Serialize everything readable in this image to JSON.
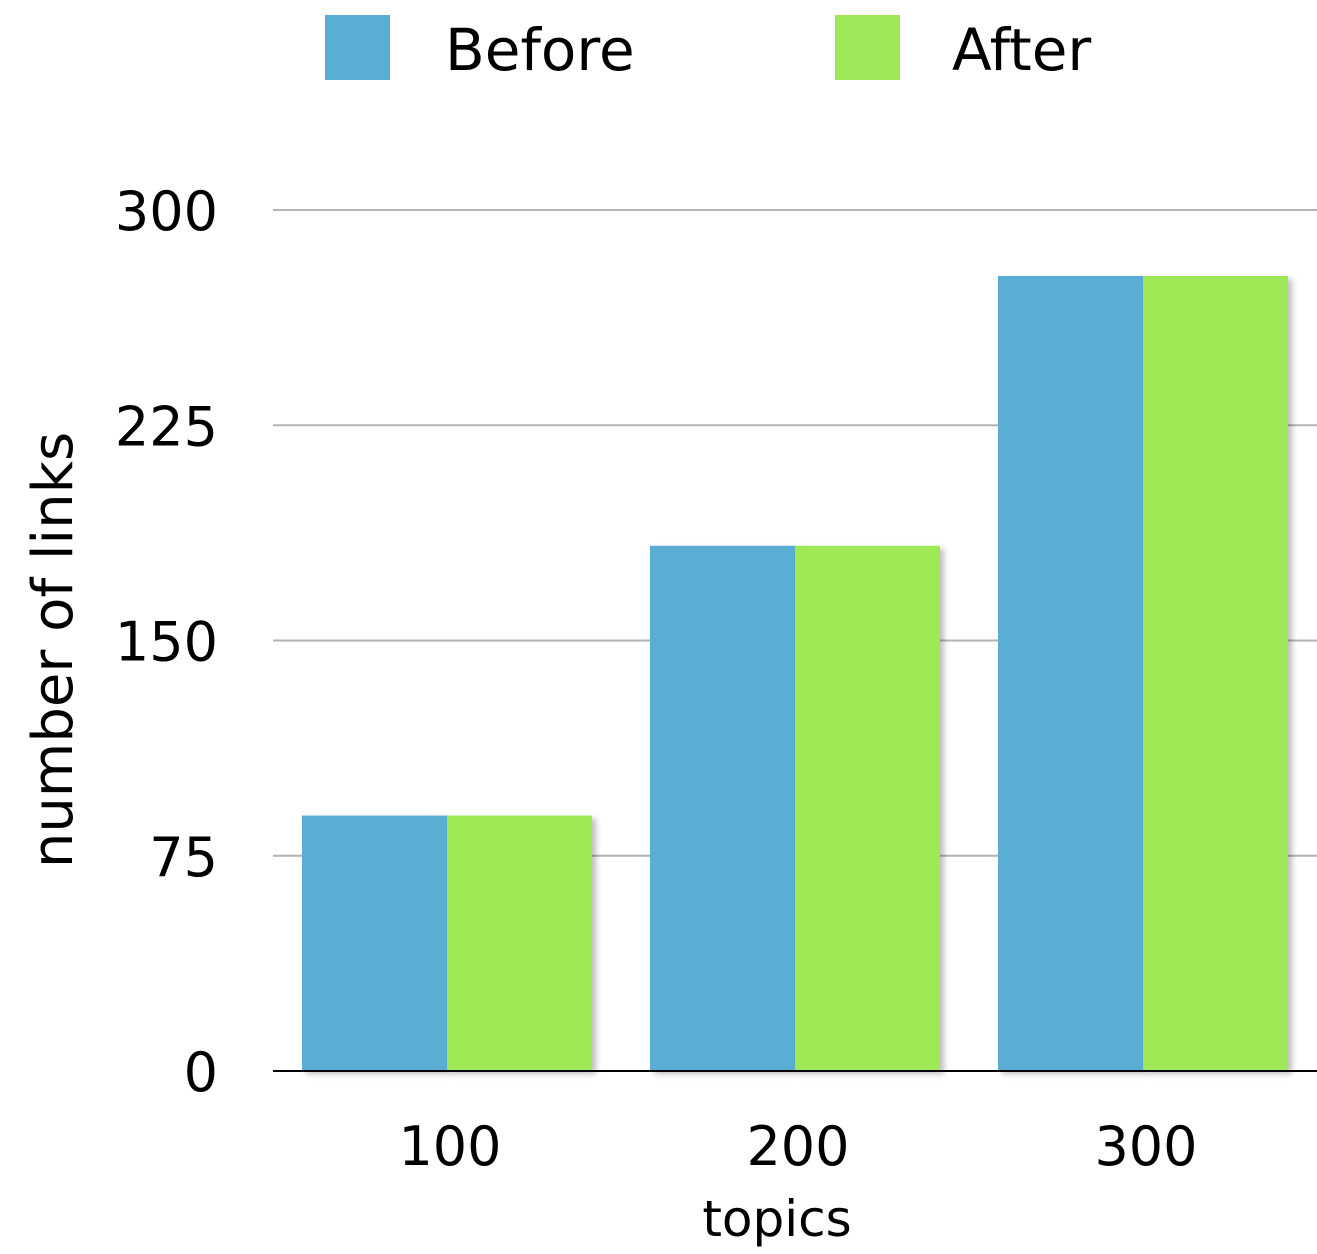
{
  "chart_data": {
    "type": "bar",
    "categories": [
      "100",
      "200",
      "300"
    ],
    "series": [
      {
        "name": "Before",
        "values": [
          89,
          183,
          277
        ],
        "color": "#5aadd3"
      },
      {
        "name": "After",
        "values": [
          89,
          183,
          277
        ],
        "color": "#9fe857"
      }
    ],
    "xlabel": "topics",
    "ylabel": "number of links",
    "ylim": [
      0,
      300
    ],
    "yticks": [
      "0",
      "75",
      "150",
      "225",
      "300"
    ],
    "grid": true,
    "legend_position": "top"
  }
}
